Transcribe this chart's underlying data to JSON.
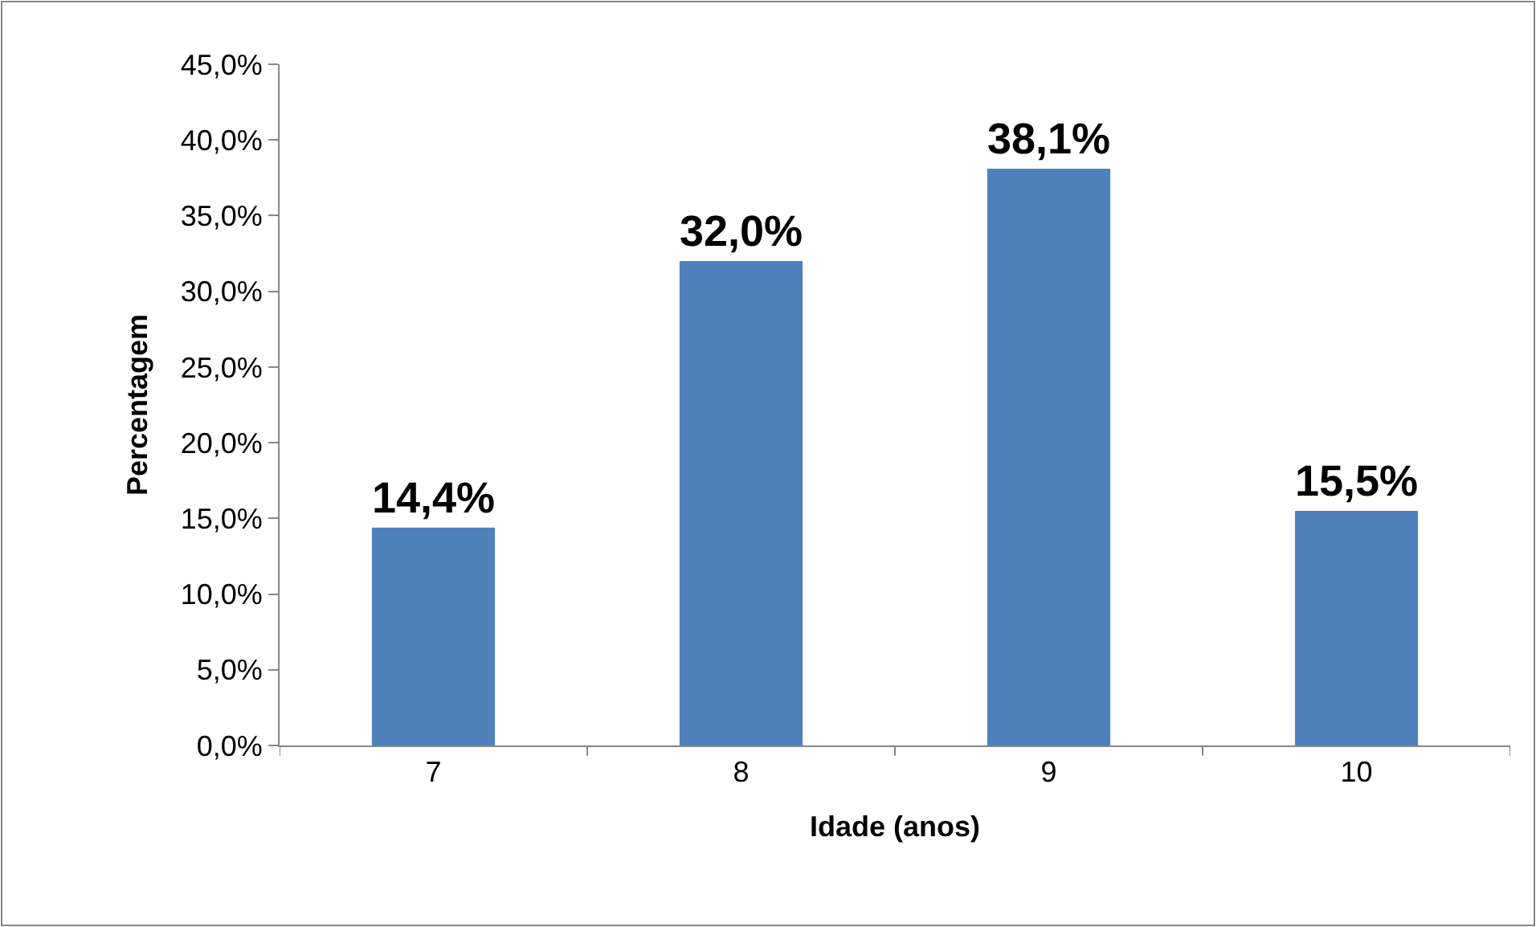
{
  "chart_data": {
    "type": "bar",
    "xlabel": "Idade (anos)",
    "ylabel": "Percentagem",
    "categories": [
      "7",
      "8",
      "9",
      "10"
    ],
    "values": [
      14.4,
      32.0,
      38.1,
      15.5
    ],
    "value_labels": [
      "14,4%",
      "32,0%",
      "38,1%",
      "15,5%"
    ],
    "color": "#4f81bd",
    "ylim": [
      0,
      45
    ],
    "yticks": [
      {
        "value": 0,
        "label": "0,0%"
      },
      {
        "value": 5,
        "label": "5,0%"
      },
      {
        "value": 10,
        "label": "10,0%"
      },
      {
        "value": 15,
        "label": "15,0%"
      },
      {
        "value": 20,
        "label": "20,0%"
      },
      {
        "value": 25,
        "label": "25,0%"
      },
      {
        "value": 30,
        "label": "30,0%"
      },
      {
        "value": 35,
        "label": "35,0%"
      },
      {
        "value": 40,
        "label": "40,0%"
      },
      {
        "value": 45,
        "label": "45,0%"
      }
    ]
  }
}
